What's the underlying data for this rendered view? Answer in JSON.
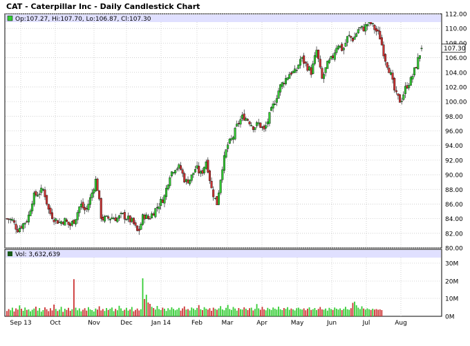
{
  "title": "CAT - Caterpillar Inc - Daily Candlestick Chart",
  "price_legend": "Op:107.27, Hi:107.70, Lo:106.87, Cl:107.30",
  "volume_legend": "Vol: 3,632,639",
  "last_price_label": "107.30",
  "colors": {
    "up": "#33cc33",
    "down": "#cc3333",
    "grid": "#c8c8c8",
    "legend_bg": "#e0e0ff",
    "last_label_bg": "#ffffff"
  },
  "chart_data": {
    "type": "candlestick",
    "x_ticks": [
      "Sep 13",
      "Oct",
      "Nov",
      "Dec",
      "Jan 14",
      "Feb",
      "Mar",
      "Apr",
      "May",
      "Jun",
      "Jul",
      "Aug"
    ],
    "price_ticks": [
      "80.00",
      "82.00",
      "84.00",
      "86.00",
      "88.00",
      "90.00",
      "92.00",
      "94.00",
      "96.00",
      "98.00",
      "100.00",
      "102.00",
      "104.00",
      "106.00",
      "108.00",
      "110.00",
      "112.00"
    ],
    "price_ylim": [
      80,
      112
    ],
    "volume_ticks": [
      "0M",
      "10M",
      "20M",
      "30M"
    ],
    "volume_ylim": [
      0,
      30
    ],
    "grid": true,
    "last": {
      "open": 107.27,
      "high": 107.7,
      "low": 106.87,
      "close": 107.3,
      "volume": 3632639
    },
    "close_path": [
      84.0,
      83.8,
      82.5,
      83.2,
      84.0,
      87.0,
      87.5,
      88.0,
      85.0,
      84.0,
      83.5,
      83.8,
      83.0,
      84.0,
      86.0,
      85.0,
      87.0,
      89.5,
      84.0,
      84.0,
      84.2,
      84.0,
      84.5,
      84.0,
      83.5,
      82.0,
      84.5,
      84.0,
      85.0,
      86.0,
      87.0,
      90.0,
      91.0,
      91.0,
      89.0,
      89.5,
      91.0,
      90.0,
      92.0,
      88.0,
      86.0,
      91.0,
      94.0,
      95.0,
      97.0,
      98.0,
      97.5,
      96.5,
      97.0,
      96.0,
      98.0,
      100.0,
      102.0,
      103.0,
      104.0,
      104.0,
      106.0,
      105.0,
      104.0,
      107.0,
      103.0,
      105.0,
      106.0,
      108.0,
      107.0,
      109.0,
      108.5,
      110.0,
      110.0,
      111.0,
      110.0,
      109.0,
      106.0,
      104.0,
      101.0,
      100.0,
      102.0,
      103.0,
      105.0,
      107.3
    ],
    "volume_daily": [
      3.1,
      4.2,
      3.5,
      5.0,
      2.8,
      4.6,
      3.9,
      6.3,
      4.4,
      3.2,
      5.1,
      3.7,
      4.0,
      2.9,
      3.8,
      4.5,
      5.6,
      3.3,
      4.8,
      2.7,
      3.6,
      5.2,
      4.1,
      3.0,
      4.7,
      3.4,
      6.8,
      4.3,
      3.1,
      3.9,
      5.5,
      2.6,
      4.4,
      3.7,
      4.9,
      3.2,
      4.1,
      21.5,
      5.0,
      3.5,
      4.6,
      2.9,
      3.8,
      4.7,
      3.3,
      5.3,
      4.0,
      3.6,
      2.8,
      4.5,
      3.9,
      5.8,
      3.4,
      4.2,
      3.1,
      4.8,
      3.7,
      4.4,
      5.1,
      3.0,
      4.3,
      3.5,
      6.1,
      4.6,
      3.2,
      3.8,
      4.9,
      3.3,
      4.0,
      5.4,
      2.9,
      3.7,
      4.5,
      3.4,
      4.1,
      22.0,
      10.0,
      12.5,
      8.0,
      7.2,
      5.5,
      4.8,
      3.9,
      6.0,
      4.2,
      3.6,
      5.0,
      4.4,
      3.1,
      4.7,
      3.8,
      5.2,
      4.3,
      3.5,
      4.0,
      4.9,
      3.3,
      4.6,
      5.7,
      3.9,
      4.2,
      3.4,
      5.1,
      4.5,
      3.7,
      4.8,
      6.5,
      4.1,
      3.6,
      5.3,
      4.4,
      3.9,
      4.7,
      3.2,
      5.0,
      4.3,
      3.8,
      4.6,
      5.9,
      4.0,
      3.5,
      4.9,
      6.6,
      4.2,
      3.7,
      5.4,
      4.5,
      3.3,
      4.8,
      4.1,
      3.9,
      5.2,
      4.4,
      3.6,
      4.7,
      5.0,
      3.4,
      4.3,
      7.1,
      4.6,
      3.8,
      5.5,
      4.0,
      3.5,
      4.9,
      4.2,
      3.7,
      5.1,
      4.4,
      3.9,
      5.6,
      4.1,
      3.6,
      4.8,
      4.3,
      5.3,
      3.8,
      4.5,
      4.0,
      3.4,
      4.7,
      5.0,
      4.2,
      3.9,
      4.6,
      3.5,
      4.4,
      5.2,
      3.7,
      4.1,
      4.8,
      3.6,
      4.3,
      5.4,
      4.0,
      3.8,
      4.5,
      3.3,
      4.9,
      4.2,
      3.7,
      5.1,
      4.4,
      3.9,
      4.6,
      3.6,
      4.3,
      5.5,
      4.1,
      3.8,
      4.7,
      7.8,
      8.5,
      6.4,
      5.0,
      4.2,
      5.8,
      4.5,
      3.9,
      4.6,
      4.1,
      3.7,
      4.4,
      3.9,
      4.2,
      3.8,
      4.0,
      3.6
    ]
  }
}
